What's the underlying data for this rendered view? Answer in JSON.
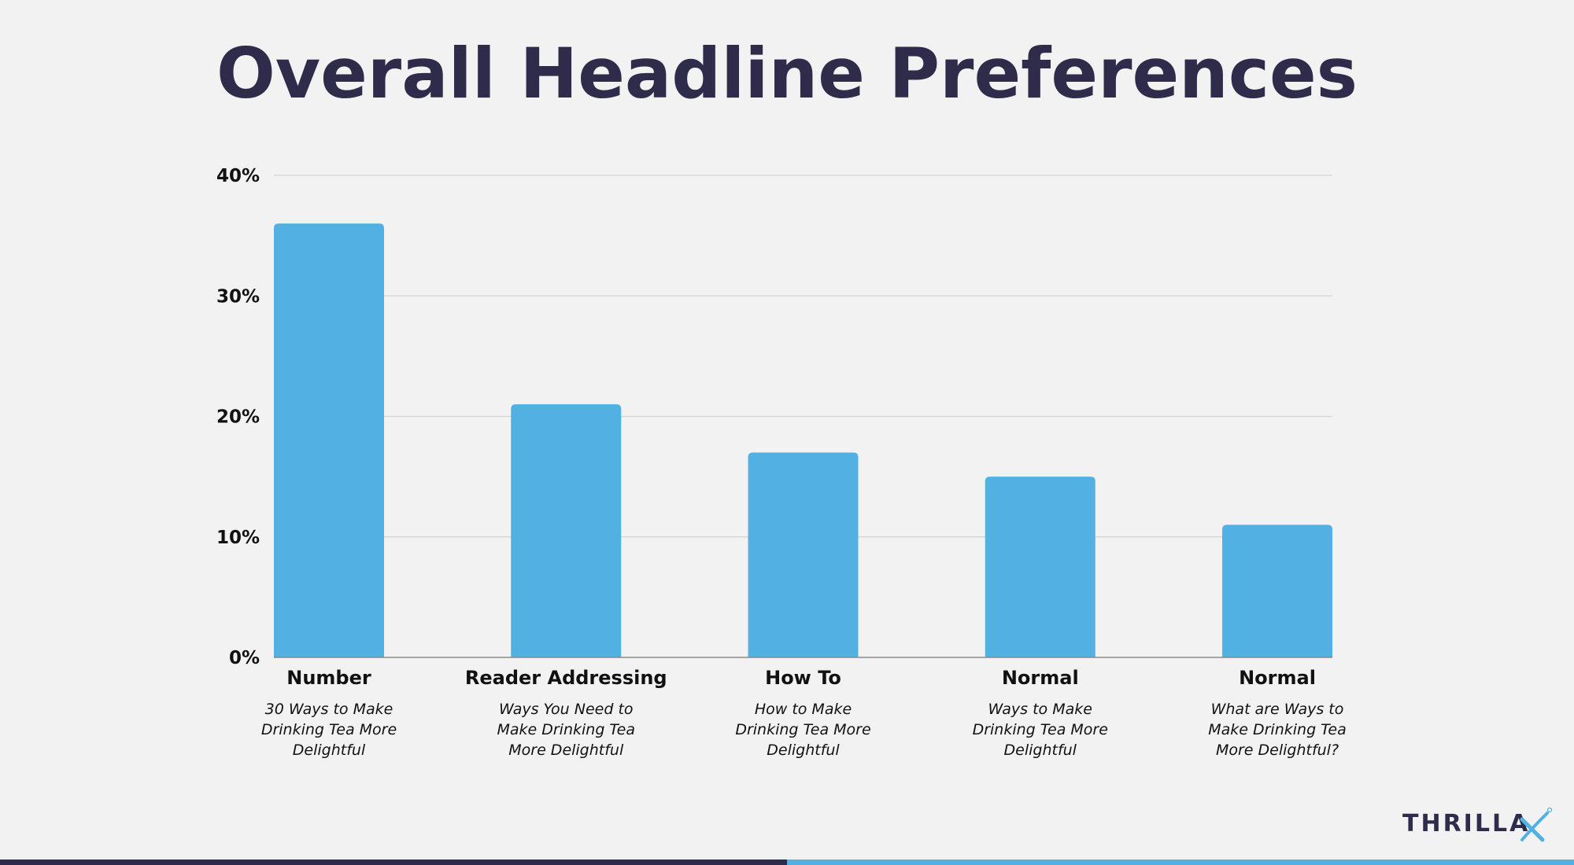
{
  "chart_data": {
    "type": "bar",
    "title": "Overall Headline Preferences",
    "categories": [
      "Number",
      "Reader Addressing",
      "How To",
      "Normal",
      "Normal"
    ],
    "subtitles": [
      [
        "30 Ways to Make",
        "Drinking Tea More",
        "Delightful"
      ],
      [
        "Ways You Need to",
        "Make Drinking Tea",
        "More Delightful"
      ],
      [
        "How to Make",
        "Drinking Tea More",
        "Delightful"
      ],
      [
        "Ways to Make",
        "Drinking Tea More",
        "Delightful"
      ],
      [
        "What are Ways to",
        "Make Drinking Tea",
        "More Delightful?"
      ]
    ],
    "values": [
      36,
      21,
      17,
      15,
      11
    ],
    "ylim": [
      0,
      40
    ],
    "yticks": [
      0,
      10,
      20,
      30,
      40
    ],
    "tick_suffix": "%",
    "xlabel": "",
    "ylabel": "",
    "grid": true,
    "bar_color": "#52b0e2"
  },
  "brand": {
    "logo_text": "THRILLA",
    "logo_mark": "X",
    "colors": {
      "dark": "#2f2c4b",
      "accent": "#52b0e2"
    }
  }
}
